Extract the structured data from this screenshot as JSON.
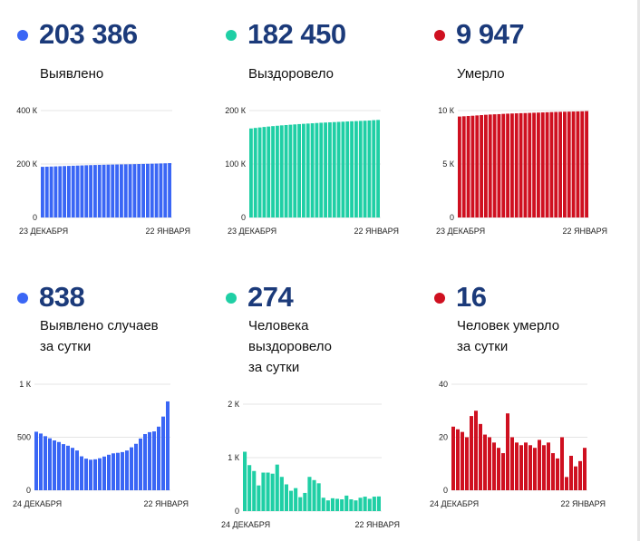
{
  "colors": {
    "blue": "#3a66f5",
    "teal": "#1fcfa5",
    "red": "#cf1020",
    "number": "#1b3a7a"
  },
  "panels": [
    {
      "value": "203 386",
      "label": "Выявлено",
      "color": "#3a66f5"
    },
    {
      "value": "182 450",
      "label": "Выздоровело",
      "color": "#1fcfa5"
    },
    {
      "value": "9 947",
      "label": "Умерло",
      "color": "#cf1020"
    },
    {
      "value": "838",
      "label": "Выявлено случаев\nза сутки",
      "color": "#3a66f5"
    },
    {
      "value": "274",
      "label": "Человека\nвыздоровело\nза сутки",
      "color": "#1fcfa5"
    },
    {
      "value": "16",
      "label": "Человек умерло\nза сутки",
      "color": "#cf1020"
    }
  ],
  "chart_data": [
    {
      "type": "bar",
      "color": "#3a66f5",
      "ylim": [
        0,
        400000
      ],
      "yticks": [
        {
          "value": 0,
          "label": "0"
        },
        {
          "value": 200000,
          "label": "200 К"
        },
        {
          "value": 400000,
          "label": "400 К"
        }
      ],
      "xlabels": [
        "23 ДЕКАБРЯ",
        "22 ЯНВАРЯ"
      ],
      "values": [
        189500,
        190000,
        190500,
        191100,
        191700,
        192300,
        192900,
        193500,
        194100,
        194700,
        195300,
        195800,
        196300,
        196800,
        197200,
        197600,
        197900,
        198200,
        198500,
        198800,
        199100,
        199500,
        199900,
        200300,
        200800,
        201200,
        201700,
        202200,
        202700,
        203386
      ]
    },
    {
      "type": "bar",
      "color": "#1fcfa5",
      "ylim": [
        0,
        200000
      ],
      "yticks": [
        {
          "value": 0,
          "label": "0"
        },
        {
          "value": 100000,
          "label": "100 К"
        },
        {
          "value": 200000,
          "label": "200 К"
        }
      ],
      "xlabels": [
        "23 ДЕКАБРЯ",
        "22 ЯНВАРЯ"
      ],
      "values": [
        166500,
        167500,
        168400,
        169300,
        170100,
        170900,
        171600,
        172300,
        172900,
        173500,
        174100,
        174700,
        175200,
        175700,
        176200,
        176700,
        177200,
        177600,
        178000,
        178400,
        178800,
        179200,
        179600,
        180000,
        180300,
        180700,
        181000,
        181400,
        182000,
        182450
      ]
    },
    {
      "type": "bar",
      "color": "#cf1020",
      "ylim": [
        0,
        10000
      ],
      "yticks": [
        {
          "value": 0,
          "label": "0"
        },
        {
          "value": 5000,
          "label": "5 К"
        },
        {
          "value": 10000,
          "label": "10 К"
        }
      ],
      "xlabels": [
        "23 ДЕКАБРЯ",
        "22 ЯНВАРЯ"
      ],
      "values": [
        9440,
        9465,
        9490,
        9515,
        9545,
        9575,
        9605,
        9630,
        9650,
        9665,
        9690,
        9710,
        9725,
        9740,
        9755,
        9765,
        9780,
        9795,
        9810,
        9825,
        9840,
        9855,
        9870,
        9880,
        9890,
        9900,
        9910,
        9920,
        9931,
        9947
      ]
    },
    {
      "type": "bar",
      "color": "#3a66f5",
      "ylim": [
        0,
        1000
      ],
      "yticks": [
        {
          "value": 0,
          "label": "0"
        },
        {
          "value": 500,
          "label": "500"
        },
        {
          "value": 1000,
          "label": "1 К"
        }
      ],
      "xlabels": [
        "24 ДЕКАБРЯ",
        "22 ЯНВАРЯ"
      ],
      "values": [
        552,
        535,
        510,
        490,
        470,
        455,
        435,
        420,
        400,
        375,
        320,
        298,
        288,
        292,
        302,
        318,
        335,
        348,
        353,
        360,
        375,
        405,
        438,
        488,
        530,
        548,
        555,
        600,
        695,
        838
      ]
    },
    {
      "type": "bar",
      "color": "#1fcfa5",
      "ylim": [
        0,
        2000
      ],
      "yticks": [
        {
          "value": 0,
          "label": "0"
        },
        {
          "value": 1000,
          "label": "1 К"
        },
        {
          "value": 2000,
          "label": "2 К"
        }
      ],
      "xlabels": [
        "24 ДЕКАБРЯ",
        "22 ЯНВАРЯ"
      ],
      "values": [
        1110,
        860,
        750,
        480,
        720,
        720,
        700,
        870,
        640,
        500,
        380,
        430,
        260,
        340,
        640,
        580,
        520,
        250,
        200,
        240,
        230,
        220,
        290,
        220,
        200,
        250,
        270,
        230,
        270,
        274
      ]
    },
    {
      "type": "bar",
      "color": "#cf1020",
      "ylim": [
        0,
        40
      ],
      "yticks": [
        {
          "value": 0,
          "label": "0"
        },
        {
          "value": 20,
          "label": "20"
        },
        {
          "value": 40,
          "label": "40"
        }
      ],
      "xlabels": [
        "24 ДЕКАБРЯ",
        "22 ЯНВАРЯ"
      ],
      "values": [
        24,
        23,
        22,
        20,
        28,
        30,
        25,
        21,
        20,
        18,
        16,
        14,
        29,
        20,
        18,
        17,
        18,
        17,
        16,
        19,
        17,
        18,
        14,
        12,
        20,
        5,
        13,
        9,
        11,
        16
      ]
    }
  ]
}
